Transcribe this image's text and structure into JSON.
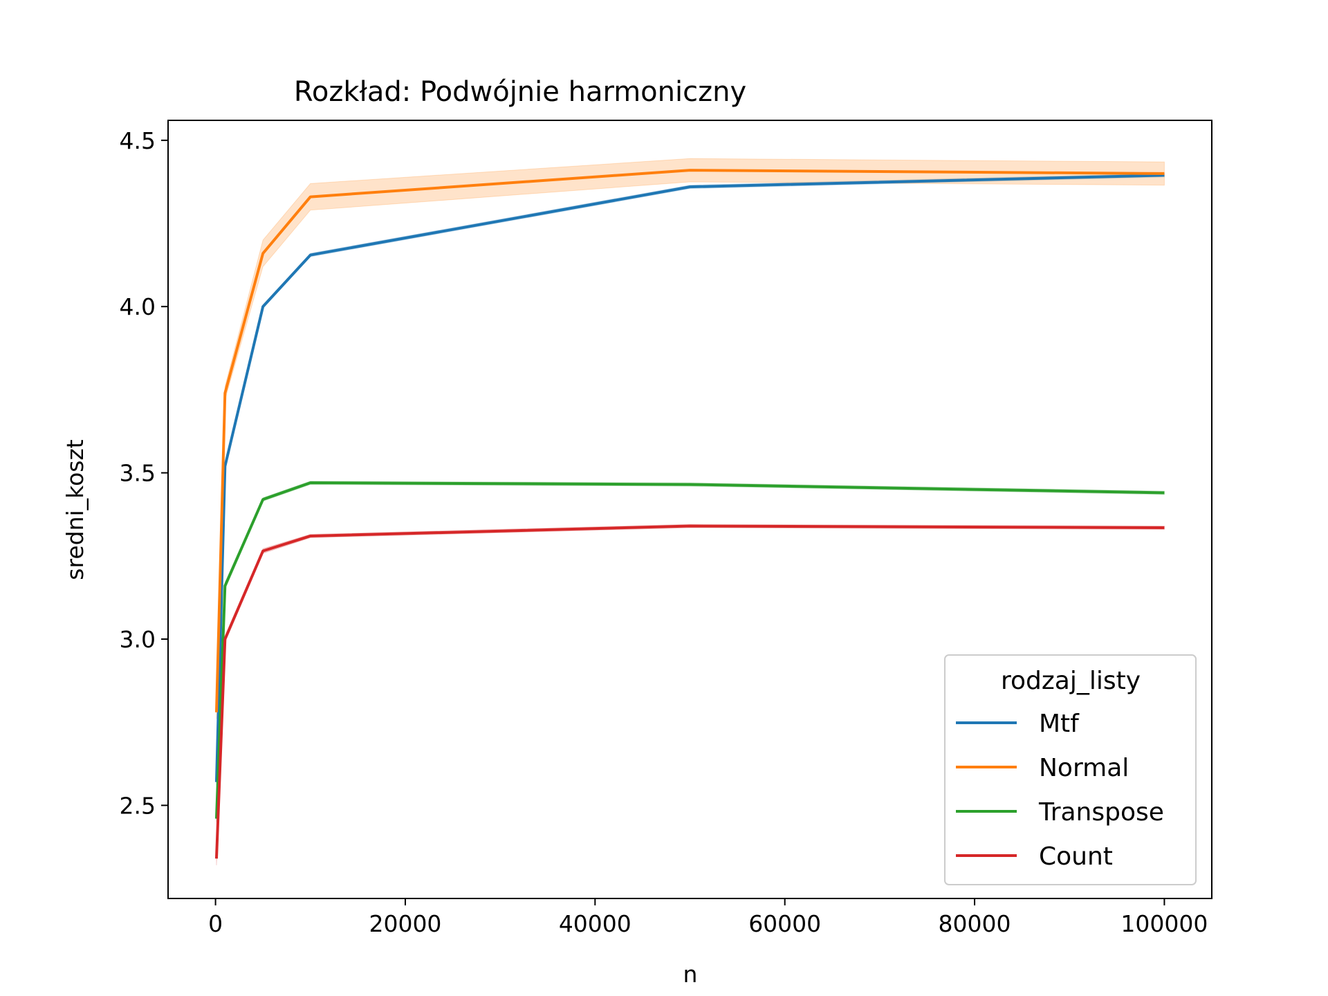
{
  "chart_data": {
    "type": "line",
    "title": "Rozkład: Podwójnie harmoniczny",
    "xlabel": "n",
    "ylabel": "sredni_koszt",
    "xlim": [
      -5000,
      105000
    ],
    "ylim": [
      2.22,
      4.56
    ],
    "x_ticks": [
      0,
      20000,
      40000,
      60000,
      80000,
      100000
    ],
    "y_ticks": [
      2.5,
      3.0,
      3.5,
      4.0,
      4.5
    ],
    "grid": false,
    "legend": {
      "title": "rodzaj_listy",
      "placement": "lower-right"
    },
    "x": [
      100,
      1000,
      5000,
      10000,
      50000,
      100000
    ],
    "series": [
      {
        "name": "Mtf",
        "color": "#1f77b4",
        "values": [
          2.57,
          3.52,
          4.0,
          4.155,
          4.36,
          4.395
        ],
        "ci": [
          [
            2.56,
            2.58
          ],
          [
            3.51,
            3.53
          ],
          [
            3.995,
            4.005
          ],
          [
            4.15,
            4.16
          ],
          [
            4.355,
            4.365
          ],
          [
            4.39,
            4.4
          ]
        ]
      },
      {
        "name": "Normal",
        "color": "#ff7f0e",
        "values": [
          2.78,
          3.74,
          4.16,
          4.33,
          4.41,
          4.4
        ],
        "ci": [
          [
            2.76,
            2.8
          ],
          [
            3.72,
            3.76
          ],
          [
            4.12,
            4.2
          ],
          [
            4.29,
            4.37
          ],
          [
            4.375,
            4.445
          ],
          [
            4.365,
            4.435
          ]
        ]
      },
      {
        "name": "Transpose",
        "color": "#2ca02c",
        "values": [
          2.46,
          3.16,
          3.42,
          3.47,
          3.465,
          3.44
        ],
        "ci": [
          [
            2.45,
            2.47
          ],
          [
            3.15,
            3.17
          ],
          [
            3.415,
            3.425
          ],
          [
            3.465,
            3.475
          ],
          [
            3.46,
            3.47
          ],
          [
            3.435,
            3.445
          ]
        ]
      },
      {
        "name": "Count",
        "color": "#d62728",
        "values": [
          2.34,
          3.0,
          3.265,
          3.31,
          3.34,
          3.335
        ],
        "ci": [
          [
            2.32,
            2.36
          ],
          [
            2.99,
            3.01
          ],
          [
            3.258,
            3.272
          ],
          [
            3.305,
            3.315
          ],
          [
            3.335,
            3.345
          ],
          [
            3.33,
            3.34
          ]
        ]
      }
    ]
  }
}
